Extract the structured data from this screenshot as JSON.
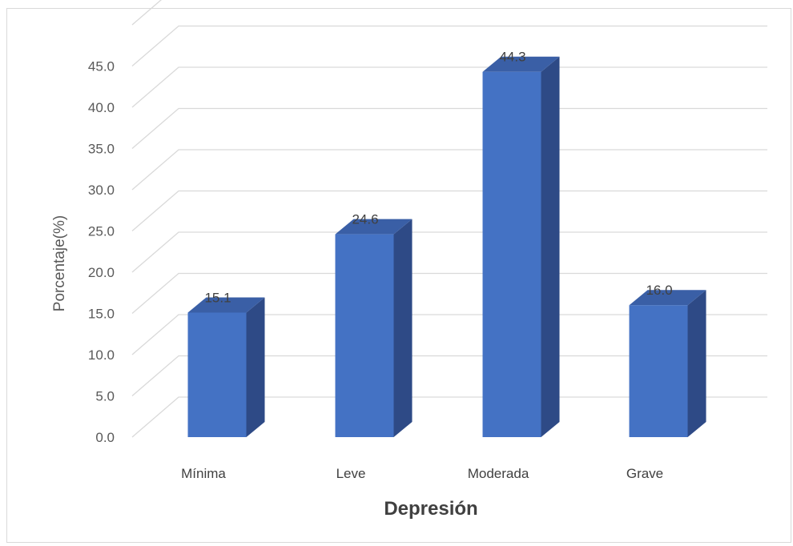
{
  "chart_data": {
    "type": "bar",
    "categories": [
      "Mínima",
      "Leve",
      "Moderada",
      "Grave"
    ],
    "values": [
      15.1,
      24.6,
      44.3,
      16.0
    ],
    "data_labels": [
      "15.1",
      "24.6",
      "44.3",
      "16.0"
    ],
    "title": "",
    "xlabel": "Depresión",
    "ylabel": "Porcentaje(%)",
    "ylim": [
      0,
      50
    ],
    "y_ticks": [
      "0.0",
      "5.0",
      "10.0",
      "15.0",
      "20.0",
      "25.0",
      "30.0",
      "35.0",
      "40.0",
      "45.0"
    ],
    "style": "3d-column",
    "grid": true,
    "legend": "none",
    "colors": {
      "bar_front": "#4472c4",
      "bar_side": "#2e4a86",
      "bar_top": "#3a5fa6",
      "grid": "#d9d9d9"
    }
  }
}
